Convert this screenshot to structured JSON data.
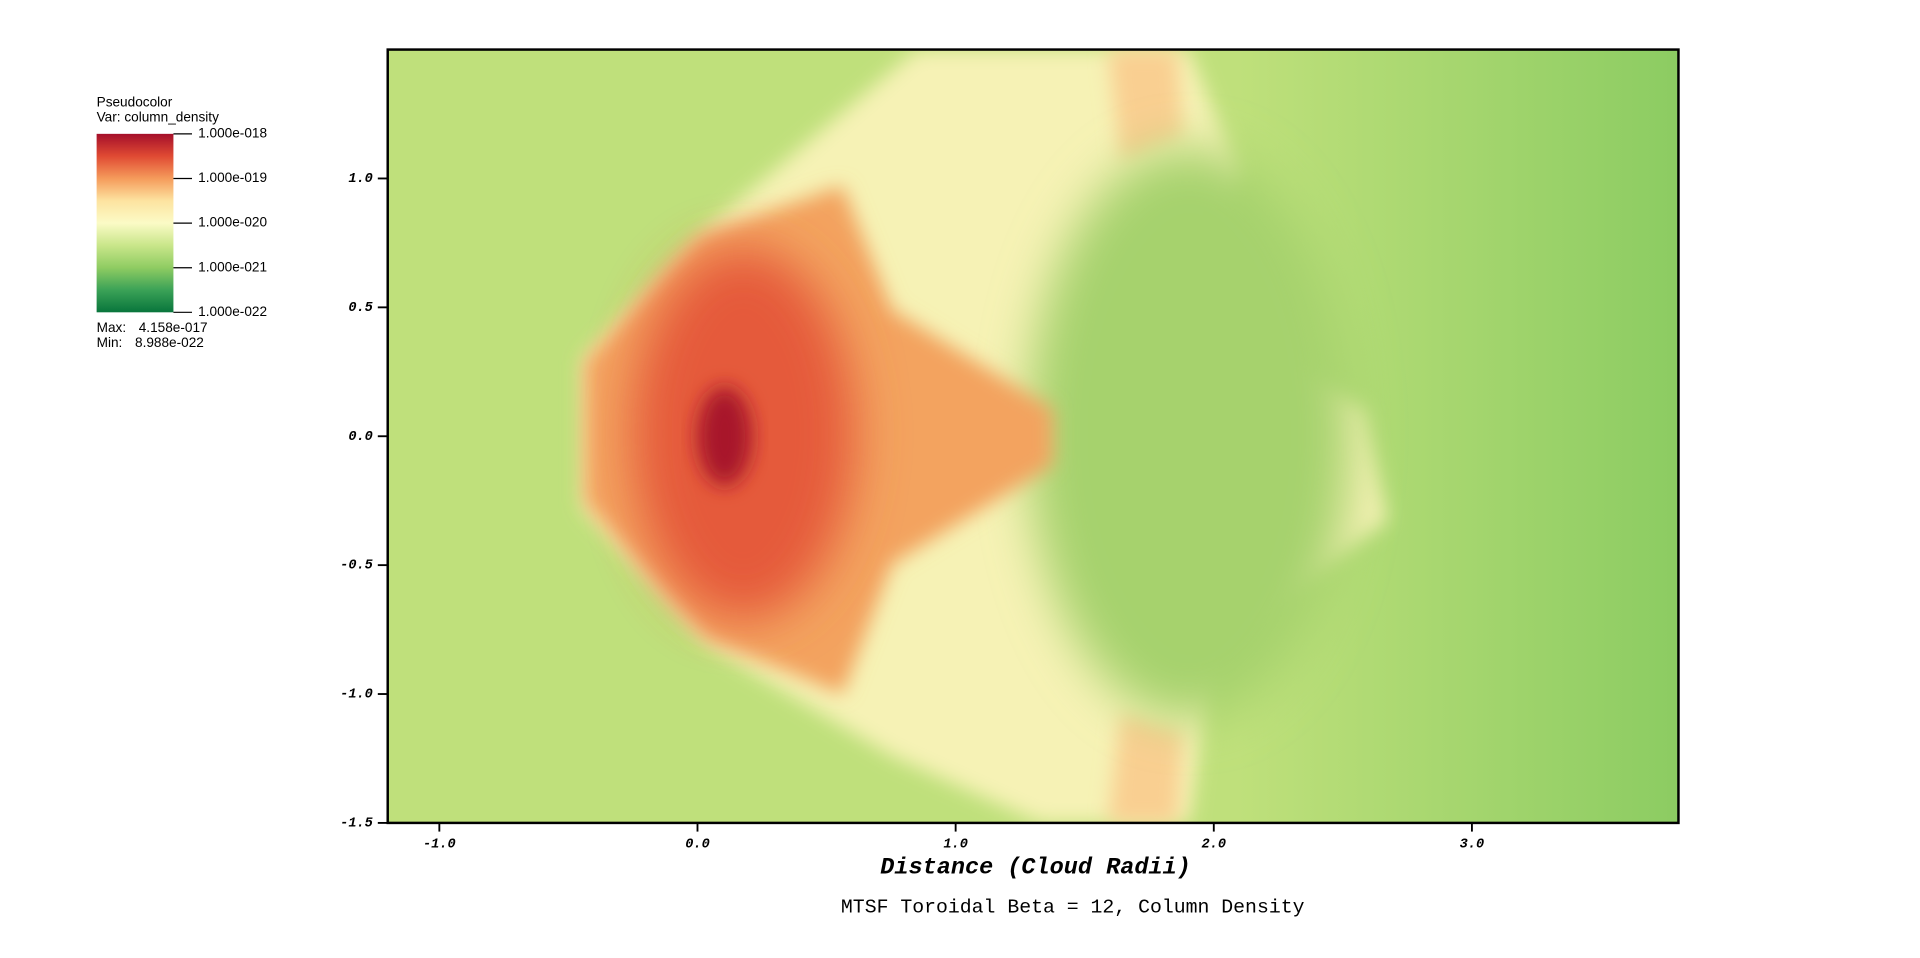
{
  "chart_data": {
    "type": "pseudocolor",
    "title": "MTSF Toroidal Beta = 12, Column Density",
    "xlabel": "Distance (Cloud Radii)",
    "xlim": [
      -1.2,
      3.8
    ],
    "ylim": [
      -1.5,
      1.5
    ],
    "xticks": [
      {
        "value": -1,
        "label": "-1.0"
      },
      {
        "value": 0,
        "label": "0.0"
      },
      {
        "value": 1,
        "label": "1.0"
      },
      {
        "value": 2,
        "label": "2.0"
      },
      {
        "value": 3,
        "label": "3.0"
      }
    ],
    "yticks": [
      {
        "value": -1.5,
        "label": "-1.5"
      },
      {
        "value": -1,
        "label": "-1.0"
      },
      {
        "value": -0.5,
        "label": "-0.5"
      },
      {
        "value": 0,
        "label": "0.0"
      },
      {
        "value": 0.5,
        "label": "0.5"
      },
      {
        "value": 1,
        "label": "1.0"
      }
    ],
    "legend": {
      "plot_label": "Pseudocolor",
      "var_label": "Var: column_density",
      "log_scale": true,
      "colormap": [
        "#a50f2a",
        "#e04a33",
        "#f59b5b",
        "#fde3a0",
        "#fbfbc6",
        "#c9e68a",
        "#8fcc62",
        "#3ba257",
        "#08753c"
      ],
      "ticks": [
        {
          "value": 1e-18,
          "label": "1.000e-018"
        },
        {
          "value": 1e-19,
          "label": "1.000e-019"
        },
        {
          "value": 1e-20,
          "label": "1.000e-020"
        },
        {
          "value": 1e-21,
          "label": "1.000e-021"
        },
        {
          "value": 1e-22,
          "label": "1.000e-022"
        }
      ],
      "max_label": "Max:",
      "max": {
        "value": 4.158e-17,
        "label": "4.158e-017"
      },
      "min_label": "Min:",
      "min": {
        "value": 8.988e-22,
        "label": "8.988e-022"
      }
    }
  }
}
